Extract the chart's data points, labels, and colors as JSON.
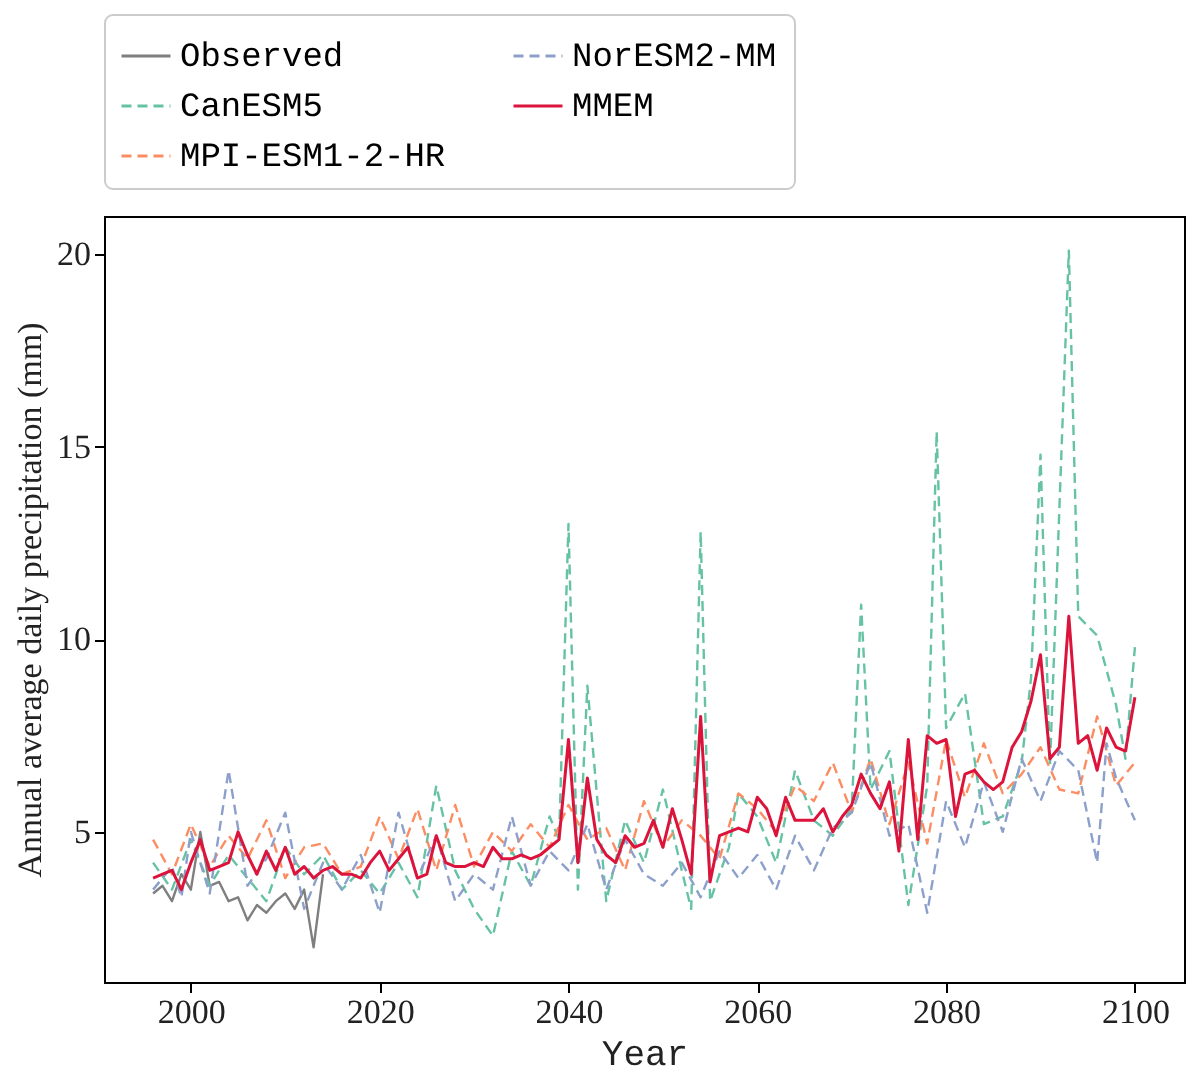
{
  "chart_data": {
    "type": "line",
    "xlabel": "Year",
    "ylabel": "Annual average daily precipitation (mm)",
    "xlim": [
      1990.8,
      2105.2
    ],
    "ylim": [
      1.1,
      21.0
    ],
    "xticks": [
      2000,
      2020,
      2040,
      2060,
      2080,
      2100
    ],
    "yticks": [
      5,
      10,
      15,
      20
    ],
    "grid": false,
    "legend": "top",
    "marker": "none",
    "series": [
      {
        "name": "Observed",
        "color": "#7f7f7f",
        "line_style": "solid",
        "x": [
          1996,
          1997,
          1998,
          1999,
          2000,
          2001,
          2002,
          2003,
          2004,
          2005,
          2006,
          2007,
          2008,
          2009,
          2010,
          2011,
          2012,
          2013,
          2014
        ],
        "values": [
          3.4,
          3.6,
          3.2,
          3.9,
          3.5,
          5.0,
          3.6,
          3.7,
          3.2,
          3.3,
          2.7,
          3.1,
          2.9,
          3.2,
          3.4,
          3.0,
          3.5,
          2.0,
          3.9
        ]
      },
      {
        "name": "CanESM5",
        "color": "#66c2a5",
        "line_style": "dashed",
        "x": [
          1996,
          1998,
          2000,
          2002,
          2004,
          2006,
          2008,
          2010,
          2012,
          2014,
          2016,
          2018,
          2020,
          2022,
          2024,
          2026,
          2028,
          2030,
          2032,
          2034,
          2036,
          2038,
          2039,
          2040,
          2041,
          2042,
          2044,
          2046,
          2048,
          2050,
          2052,
          2053,
          2054,
          2055,
          2057,
          2058,
          2060,
          2062,
          2064,
          2066,
          2068,
          2070,
          2071,
          2072,
          2074,
          2076,
          2078,
          2079,
          2080,
          2082,
          2084,
          2086,
          2088,
          2089,
          2090,
          2091,
          2093,
          2094,
          2096,
          2098,
          2099,
          2100
        ],
        "values": [
          4.2,
          3.5,
          4.8,
          3.6,
          4.4,
          3.8,
          3.2,
          4.6,
          3.9,
          4.4,
          3.5,
          4.0,
          3.4,
          4.2,
          3.3,
          6.2,
          4.0,
          3.0,
          2.3,
          4.5,
          3.6,
          5.4,
          4.8,
          13.0,
          3.5,
          8.8,
          3.2,
          5.3,
          4.2,
          6.1,
          4.0,
          3.0,
          12.8,
          3.2,
          4.6,
          6.0,
          5.4,
          4.2,
          6.6,
          5.3,
          4.9,
          5.6,
          10.9,
          6.1,
          7.1,
          3.1,
          6.2,
          15.4,
          7.7,
          8.6,
          5.2,
          5.4,
          6.8,
          9.0,
          14.8,
          6.7,
          20.1,
          10.6,
          10.1,
          8.3,
          6.9,
          9.8
        ]
      },
      {
        "name": "MPI-ESM1-2-HR",
        "color": "#fc8d62",
        "line_style": "dashed",
        "x": [
          1996,
          1998,
          2000,
          2002,
          2004,
          2006,
          2008,
          2010,
          2012,
          2014,
          2016,
          2018,
          2020,
          2022,
          2024,
          2026,
          2028,
          2030,
          2032,
          2034,
          2036,
          2038,
          2040,
          2042,
          2044,
          2046,
          2048,
          2050,
          2052,
          2054,
          2056,
          2058,
          2060,
          2062,
          2064,
          2066,
          2068,
          2070,
          2072,
          2074,
          2076,
          2078,
          2080,
          2082,
          2084,
          2086,
          2088,
          2090,
          2092,
          2094,
          2096,
          2098,
          2100
        ],
        "values": [
          4.8,
          3.9,
          5.2,
          4.1,
          4.9,
          4.3,
          5.3,
          3.8,
          4.6,
          4.7,
          3.9,
          4.1,
          5.4,
          4.3,
          5.6,
          4.0,
          5.7,
          4.1,
          5.0,
          4.5,
          5.2,
          4.6,
          5.7,
          4.8,
          5.1,
          4.0,
          5.8,
          4.6,
          5.3,
          4.9,
          4.3,
          6.0,
          5.6,
          5.0,
          6.2,
          5.8,
          6.8,
          5.5,
          6.9,
          5.2,
          6.8,
          4.7,
          7.4,
          5.9,
          7.3,
          6.0,
          6.5,
          7.2,
          6.1,
          6.0,
          8.0,
          6.2,
          6.8
        ]
      },
      {
        "name": "NorESM2-MM",
        "color": "#8da0cb",
        "line_style": "dashed",
        "x": [
          1996,
          1998,
          1999,
          2000,
          2002,
          2004,
          2006,
          2008,
          2010,
          2012,
          2014,
          2016,
          2018,
          2020,
          2022,
          2024,
          2026,
          2028,
          2030,
          2032,
          2034,
          2036,
          2038,
          2040,
          2042,
          2044,
          2046,
          2048,
          2050,
          2052,
          2054,
          2056,
          2058,
          2060,
          2062,
          2064,
          2066,
          2068,
          2070,
          2072,
          2074,
          2076,
          2078,
          2080,
          2082,
          2084,
          2086,
          2088,
          2090,
          2092,
          2094,
          2096,
          2097,
          2098,
          2100
        ],
        "values": [
          3.5,
          4.1,
          3.3,
          5.0,
          3.4,
          6.6,
          3.6,
          4.3,
          5.5,
          3.0,
          4.2,
          3.5,
          4.4,
          2.9,
          5.5,
          3.8,
          4.9,
          3.2,
          3.9,
          3.5,
          5.4,
          3.6,
          4.5,
          4.0,
          5.2,
          3.5,
          4.8,
          3.9,
          3.6,
          4.2,
          3.3,
          4.5,
          3.8,
          4.4,
          3.5,
          4.9,
          4.0,
          5.1,
          5.5,
          6.8,
          4.9,
          5.2,
          2.9,
          5.8,
          4.6,
          6.3,
          5.0,
          6.9,
          5.8,
          7.1,
          6.6,
          4.2,
          7.3,
          6.4,
          5.3
        ]
      },
      {
        "name": "MMEM",
        "color": "#dc143c",
        "line_style": "solid",
        "x": [
          1996,
          1997,
          1998,
          1999,
          2000,
          2001,
          2002,
          2003,
          2004,
          2005,
          2006,
          2007,
          2008,
          2009,
          2010,
          2011,
          2012,
          2013,
          2014,
          2015,
          2016,
          2017,
          2018,
          2019,
          2020,
          2021,
          2022,
          2023,
          2024,
          2025,
          2026,
          2027,
          2028,
          2029,
          2030,
          2031,
          2032,
          2033,
          2034,
          2035,
          2036,
          2037,
          2038,
          2039,
          2040,
          2041,
          2042,
          2043,
          2044,
          2045,
          2046,
          2047,
          2048,
          2049,
          2050,
          2051,
          2052,
          2053,
          2054,
          2055,
          2056,
          2057,
          2058,
          2059,
          2060,
          2061,
          2062,
          2063,
          2064,
          2065,
          2066,
          2067,
          2068,
          2069,
          2070,
          2071,
          2072,
          2073,
          2074,
          2075,
          2076,
          2077,
          2078,
          2079,
          2080,
          2081,
          2082,
          2083,
          2084,
          2085,
          2086,
          2087,
          2088,
          2089,
          2090,
          2091,
          2092,
          2093,
          2094,
          2095,
          2096,
          2097,
          2098,
          2099,
          2100
        ],
        "values": [
          3.8,
          3.9,
          4.0,
          3.5,
          4.2,
          4.8,
          4.0,
          4.1,
          4.2,
          5.0,
          4.4,
          3.9,
          4.5,
          4.0,
          4.6,
          3.9,
          4.1,
          3.8,
          4.0,
          4.1,
          3.9,
          3.9,
          3.8,
          4.2,
          4.5,
          4.0,
          4.3,
          4.6,
          3.8,
          3.9,
          4.9,
          4.2,
          4.1,
          4.1,
          4.2,
          4.1,
          4.6,
          4.3,
          4.3,
          4.4,
          4.3,
          4.4,
          4.6,
          4.8,
          7.4,
          4.2,
          6.4,
          4.8,
          4.4,
          4.2,
          4.9,
          4.6,
          4.7,
          5.3,
          4.6,
          5.6,
          4.8,
          3.9,
          8.0,
          3.7,
          4.9,
          5.0,
          5.1,
          5.0,
          5.9,
          5.6,
          4.9,
          5.9,
          5.3,
          5.3,
          5.3,
          5.6,
          5.0,
          5.4,
          5.7,
          6.5,
          6.0,
          5.6,
          6.3,
          4.5,
          7.4,
          4.8,
          7.5,
          7.3,
          7.4,
          5.4,
          6.5,
          6.6,
          6.3,
          6.1,
          6.3,
          7.2,
          7.6,
          8.4,
          9.6,
          6.9,
          7.2,
          10.6,
          7.3,
          7.5,
          6.6,
          7.7,
          7.2,
          7.1,
          8.5
        ]
      }
    ]
  }
}
